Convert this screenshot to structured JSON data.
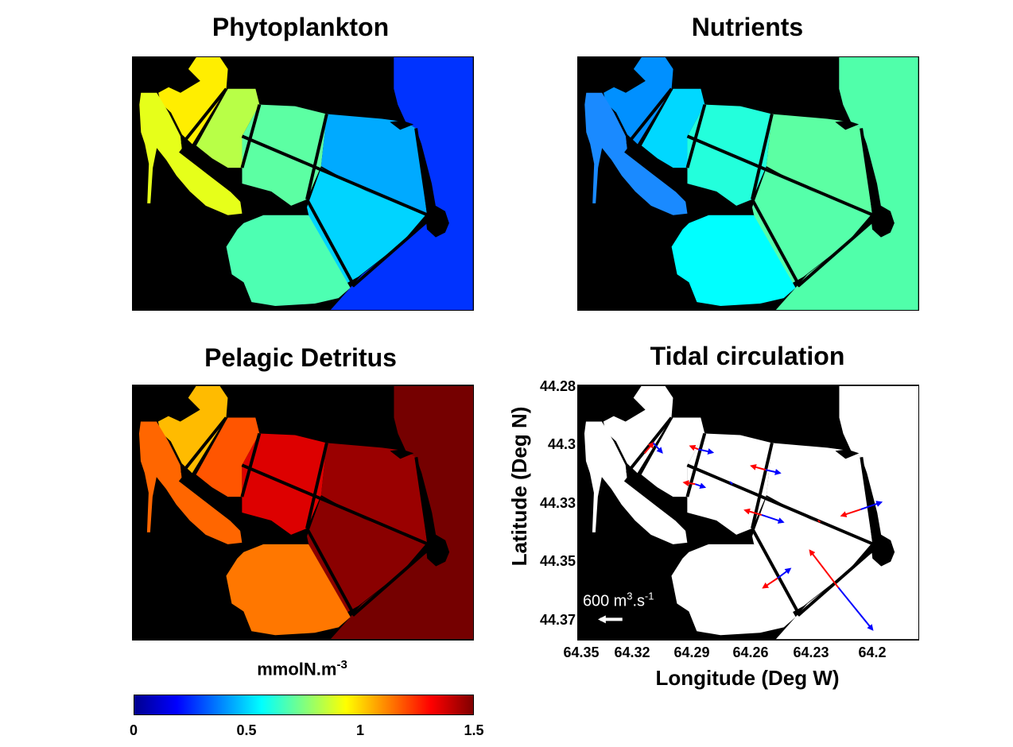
{
  "panels": {
    "phyto": {
      "title": "Phytoplankton"
    },
    "nutrients": {
      "title": "Nutrients"
    },
    "detritus": {
      "title": "Pelagic Detritus"
    },
    "tidal": {
      "title": "Tidal circulation"
    }
  },
  "colors": {
    "land": "#000000",
    "phyto": {
      "nw": "#ffee00",
      "west": "#e6ff1a",
      "nmid": "#b8ff47",
      "central": "#5cffa3",
      "east": "#00aaff",
      "south": "#00d4ff",
      "sw": "#4dffb2",
      "ocean": "#0033ff"
    },
    "nutrients": {
      "nw": "#0090ff",
      "west": "#1a8aff",
      "nmid": "#00d8ff",
      "central": "#23ffdc",
      "east": "#5cffa3",
      "south": "#55ffaa",
      "sw": "#00ffff",
      "ocean": "#50ffaa"
    },
    "detritus": {
      "nw": "#ffbb00",
      "west": "#ff6600",
      "nmid": "#ff5500",
      "central": "#dd0000",
      "east": "#9a0000",
      "south": "#8a0000",
      "sw": "#ff7700",
      "ocean": "#750000"
    },
    "tidal_water": "#ffffff",
    "flood_arrow": "#ff0000",
    "ebb_arrow": "#0000ff"
  },
  "tidal_axes": {
    "y_ticks": [
      "44.28",
      "44.3",
      "44.33",
      "44.35",
      "44.37"
    ],
    "x_ticks": [
      "64.35",
      "64.32",
      "64.29",
      "64.26",
      "64.23",
      "64.2"
    ],
    "x_label": "Longitude (Deg W)",
    "y_label": "Latitude (Deg N)",
    "scale_label": "600 m",
    "scale_sup1": "3",
    "scale_mid": ".s",
    "scale_sup2": "-1"
  },
  "colorbar": {
    "unit_main": "mmolN.m",
    "unit_sup": "-3",
    "ticks": [
      "0",
      "0.5",
      "1",
      "1.5"
    ],
    "min": 0,
    "max": 1.5,
    "colormap": "jet"
  }
}
